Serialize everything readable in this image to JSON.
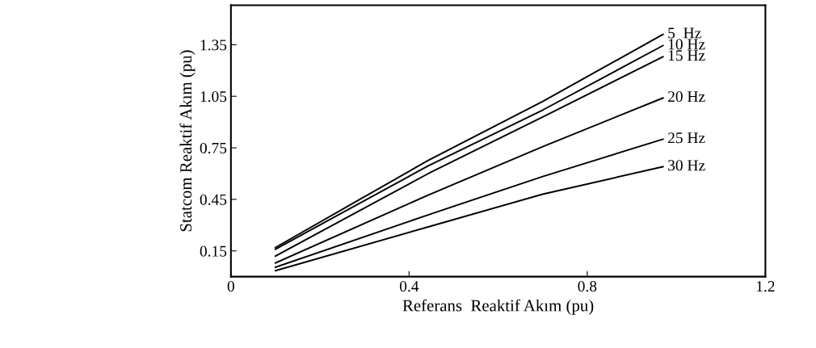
{
  "chart_data": {
    "type": "line",
    "xlabel": "Referans  Reaktif Akım (pu)",
    "ylabel": "Statcom Reaktif Akım (pu)",
    "x": [
      0.1,
      0.443,
      0.7,
      0.97
    ],
    "series": [
      {
        "name": "5  Hz",
        "color": "#000000",
        "values": [
          0.17,
          0.677,
          1.02,
          1.41
        ]
      },
      {
        "name": "10 Hz",
        "color": "#000000",
        "values": [
          0.16,
          0.645,
          0.97,
          1.345
        ]
      },
      {
        "name": "15 Hz",
        "color": "#000000",
        "values": [
          0.12,
          0.6,
          0.93,
          1.28
        ]
      },
      {
        "name": "20 Hz",
        "color": "#000000",
        "values": [
          0.08,
          0.475,
          0.757,
          1.04
        ]
      },
      {
        "name": "25 Hz",
        "color": "#000000",
        "values": [
          0.055,
          0.36,
          0.583,
          0.8
        ]
      },
      {
        "name": "30 Hz",
        "color": "#000000",
        "values": [
          0.035,
          0.29,
          0.48,
          0.64
        ]
      }
    ],
    "xlim": [
      0,
      1.2
    ],
    "xticks": [
      0,
      0.4,
      0.8,
      1.2
    ],
    "ylim": [
      0,
      1.58
    ],
    "yticks": [
      0.15,
      0.45,
      0.75,
      1.05,
      1.35
    ],
    "grid": false,
    "legend": false,
    "marker": "none",
    "line_style": "solid"
  }
}
